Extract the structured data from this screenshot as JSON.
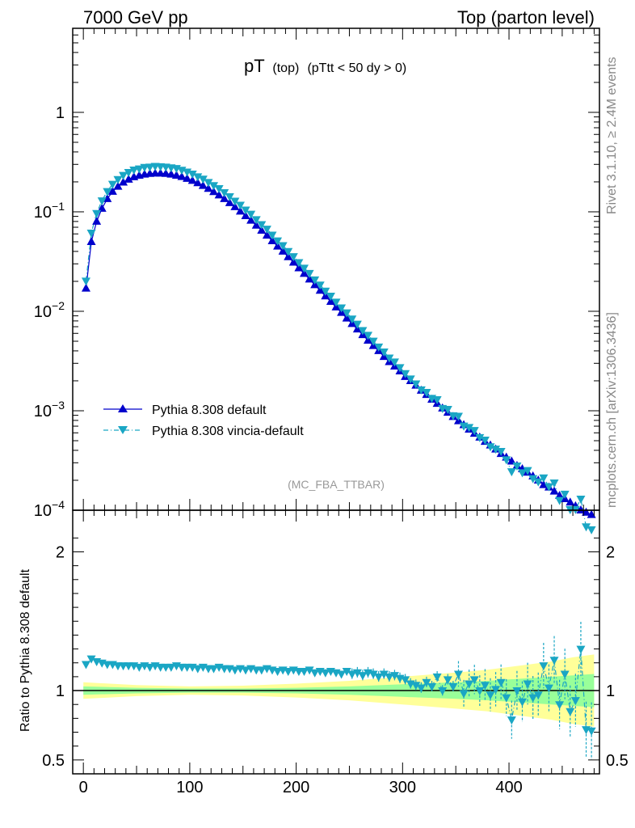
{
  "header": {
    "left": "7000 GeV pp",
    "right": "Top (parton level)"
  },
  "title": {
    "main": "pT",
    "sub1": "(top)",
    "sub2": "(pTtt < 50 dy > 0)"
  },
  "watermark": "(MC_FBA_TTBAR)",
  "side_text": {
    "upper": "Rivet 3.1.10, ≥ 2.4M events",
    "lower": "mcplots.cern.ch [arXiv:1306.3436]"
  },
  "ratio_ylabel": "Ratio to Pythia 8.308 default",
  "legend": [
    {
      "label": "Pythia 8.308 default",
      "color": "#0000cc",
      "marker": "triangle-up",
      "line": "solid"
    },
    {
      "label": "Pythia 8.308 vincia-default",
      "color": "#1aa6c4",
      "marker": "triangle-down",
      "line": "dashdot"
    }
  ],
  "colors": {
    "band_outer": "#ffff99",
    "band_inner": "#99ff99",
    "ref_line": "#000000"
  },
  "main_axis": {
    "y_ticks": [
      {
        "value": 1,
        "base": "1",
        "exp": ""
      },
      {
        "value": 0.1,
        "base": "10",
        "exp": "−1"
      },
      {
        "value": 0.01,
        "base": "10",
        "exp": "−2"
      },
      {
        "value": 0.001,
        "base": "10",
        "exp": "−3"
      },
      {
        "value": 0.0001,
        "base": "10",
        "exp": "−4"
      }
    ]
  },
  "ratio_axis": {
    "y_ticks": [
      {
        "value": 2,
        "label": "2"
      },
      {
        "value": 1,
        "label": "1"
      },
      {
        "value": 0.5,
        "label": "0.5"
      }
    ]
  },
  "x_axis": {
    "ticks": [
      {
        "value": 0,
        "label": "0"
      },
      {
        "value": 100,
        "label": "100"
      },
      {
        "value": 200,
        "label": "200"
      },
      {
        "value": 300,
        "label": "300"
      },
      {
        "value": 400,
        "label": "400"
      }
    ]
  },
  "chart_data": {
    "type": "scatter",
    "x_unit_label": "",
    "ylim_main": [
      0.0001,
      7
    ],
    "ylim_ratio": [
      0.4,
      2.3
    ],
    "xlim": [
      -10,
      485
    ],
    "log_y_main": true,
    "series_main": [
      {
        "name": "Pythia 8.308 default",
        "x": [
          2.5,
          7.5,
          12.5,
          17.5,
          22.5,
          27.5,
          32.5,
          37.5,
          42.5,
          47.5,
          52.5,
          57.5,
          62.5,
          67.5,
          72.5,
          77.5,
          82.5,
          87.5,
          92.5,
          97.5,
          102.5,
          107.5,
          112.5,
          117.5,
          122.5,
          127.5,
          132.5,
          137.5,
          142.5,
          147.5,
          152.5,
          157.5,
          162.5,
          167.5,
          172.5,
          177.5,
          182.5,
          187.5,
          192.5,
          197.5,
          202.5,
          207.5,
          212.5,
          217.5,
          222.5,
          227.5,
          232.5,
          237.5,
          242.5,
          247.5,
          252.5,
          257.5,
          262.5,
          267.5,
          272.5,
          277.5,
          282.5,
          287.5,
          292.5,
          297.5,
          302.5,
          307.5,
          312.5,
          317.5,
          322.5,
          327.5,
          332.5,
          337.5,
          342.5,
          347.5,
          352.5,
          357.5,
          362.5,
          367.5,
          372.5,
          377.5,
          382.5,
          387.5,
          392.5,
          397.5,
          402.5,
          407.5,
          412.5,
          417.5,
          422.5,
          427.5,
          432.5,
          437.5,
          442.5,
          447.5,
          452.5,
          457.5,
          462.5,
          467.5,
          472.5,
          477.5
        ],
        "y": [
          0.017,
          0.05,
          0.08,
          0.108,
          0.135,
          0.16,
          0.18,
          0.198,
          0.212,
          0.224,
          0.232,
          0.238,
          0.242,
          0.244,
          0.244,
          0.242,
          0.238,
          0.232,
          0.225,
          0.216,
          0.206,
          0.195,
          0.183,
          0.171,
          0.159,
          0.147,
          0.135,
          0.123,
          0.112,
          0.101,
          0.091,
          0.082,
          0.073,
          0.065,
          0.058,
          0.051,
          0.045,
          0.04,
          0.0352,
          0.031,
          0.0272,
          0.0239,
          0.021,
          0.0184,
          0.0162,
          0.0142,
          0.0125,
          0.011,
          0.0097,
          0.0085,
          0.0075,
          0.0066,
          0.0058,
          0.0051,
          0.0045,
          0.004,
          0.0035,
          0.0031,
          0.0028,
          0.0025,
          0.0022,
          0.002,
          0.0018,
          0.0016,
          0.00145,
          0.0013,
          0.00118,
          0.00106,
          0.00096,
          0.00087,
          0.00079,
          0.00072,
          0.00065,
          0.00059,
          0.00054,
          0.00049,
          0.00045,
          0.00041,
          0.00037,
          0.00034,
          0.00031,
          0.00028,
          0.00026,
          0.00024,
          0.00022,
          0.0002,
          0.00018,
          0.00017,
          0.000155,
          0.00014,
          0.00013,
          0.00012,
          0.00011,
          0.0001,
          9.5e-05,
          9e-05
        ]
      },
      {
        "name": "Pythia 8.308 vincia-default",
        "x": [
          2.5,
          7.5,
          12.5,
          17.5,
          22.5,
          27.5,
          32.5,
          37.5,
          42.5,
          47.5,
          52.5,
          57.5,
          62.5,
          67.5,
          72.5,
          77.5,
          82.5,
          87.5,
          92.5,
          97.5,
          102.5,
          107.5,
          112.5,
          117.5,
          122.5,
          127.5,
          132.5,
          137.5,
          142.5,
          147.5,
          152.5,
          157.5,
          162.5,
          167.5,
          172.5,
          177.5,
          182.5,
          187.5,
          192.5,
          197.5,
          202.5,
          207.5,
          212.5,
          217.5,
          222.5,
          227.5,
          232.5,
          237.5,
          242.5,
          247.5,
          252.5,
          257.5,
          262.5,
          267.5,
          272.5,
          277.5,
          282.5,
          287.5,
          292.5,
          297.5,
          302.5,
          307.5,
          312.5,
          317.5,
          322.5,
          327.5,
          332.5,
          337.5,
          342.5,
          347.5,
          352.5,
          357.5,
          362.5,
          367.5,
          372.5,
          377.5,
          382.5,
          387.5,
          392.5,
          397.5,
          402.5,
          407.5,
          412.5,
          417.5,
          422.5,
          427.5,
          432.5,
          437.5,
          442.5,
          447.5,
          452.5,
          457.5,
          462.5,
          467.5,
          472.5,
          477.5
        ],
        "ratio": [
          1.19,
          1.23,
          1.21,
          1.2,
          1.19,
          1.19,
          1.18,
          1.18,
          1.18,
          1.18,
          1.17,
          1.18,
          1.17,
          1.18,
          1.17,
          1.17,
          1.17,
          1.18,
          1.17,
          1.17,
          1.17,
          1.16,
          1.17,
          1.16,
          1.16,
          1.17,
          1.16,
          1.16,
          1.15,
          1.16,
          1.15,
          1.16,
          1.15,
          1.15,
          1.16,
          1.15,
          1.14,
          1.15,
          1.14,
          1.15,
          1.14,
          1.14,
          1.15,
          1.13,
          1.14,
          1.13,
          1.14,
          1.13,
          1.12,
          1.14,
          1.12,
          1.13,
          1.11,
          1.13,
          1.12,
          1.1,
          1.12,
          1.1,
          1.11,
          1.09,
          1.08,
          1.05,
          1.04,
          1.02,
          1.06,
          1.03,
          1.1,
          1.0,
          1.08,
          1.03,
          1.12,
          0.98,
          1.05,
          1.08,
          1.0,
          1.04,
          0.97,
          1.01,
          1.06,
          0.95,
          0.79,
          1.0,
          0.92,
          1.05,
          0.95,
          0.97,
          1.18,
          1.02,
          1.22,
          0.9,
          1.12,
          0.85,
          0.93,
          1.3,
          0.72,
          0.71
        ]
      }
    ],
    "band_ratio": {
      "x": [
        0,
        50,
        100,
        150,
        200,
        250,
        300,
        350,
        380,
        400,
        420,
        440,
        460,
        480
      ],
      "inner": [
        0.03,
        0.02,
        0.015,
        0.015,
        0.02,
        0.03,
        0.045,
        0.06,
        0.07,
        0.08,
        0.09,
        0.1,
        0.11,
        0.12
      ],
      "outer": [
        0.06,
        0.04,
        0.03,
        0.035,
        0.05,
        0.07,
        0.1,
        0.13,
        0.15,
        0.17,
        0.19,
        0.21,
        0.24,
        0.26
      ]
    }
  }
}
